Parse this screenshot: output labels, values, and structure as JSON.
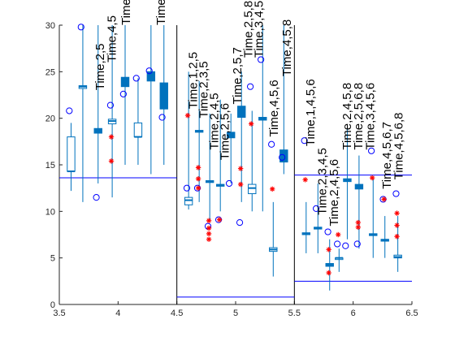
{
  "colors": {
    "box": "#0072BD",
    "outlier": "#FF0000",
    "circle": "#0000FF",
    "hline": "#0000FF",
    "axis": "#262626",
    "divider": "#000000"
  },
  "chart_data": {
    "type": "box",
    "title": "",
    "xlabel": "",
    "ylabel": "",
    "xlim": [
      3.5,
      6.5
    ],
    "ylim": [
      0,
      30
    ],
    "xticks": [
      "3.5",
      "4",
      "4.5",
      "5",
      "5.5",
      "6",
      "6.5"
    ],
    "yticks": [
      "0",
      "5",
      "10",
      "15",
      "20",
      "25",
      "30"
    ],
    "dividers_x": [
      4.5,
      5.5
    ],
    "hlines": [
      {
        "x0": 3.5,
        "x1": 4.5,
        "y": 13.6
      },
      {
        "x0": 4.5,
        "x1": 5.5,
        "y": 0.8
      },
      {
        "x0": 5.5,
        "x1": 6.5,
        "y": 2.5
      },
      {
        "x0": 5.5,
        "x1": 6.5,
        "y": 13.9
      }
    ],
    "boxes": [
      {
        "x": 3.6,
        "q1": 14.3,
        "q3": 18.0,
        "median": 14.3,
        "whisker_low": 12.2,
        "whisker_high": 19.5,
        "mean": 20.8,
        "filled": false,
        "width": 0.1
      },
      {
        "x": 3.7,
        "q1": 23.2,
        "q3": 23.5,
        "median": 23.4,
        "whisker_low": 11.0,
        "whisker_high": 30.0,
        "mean": 29.8,
        "filled": false,
        "width": 0.1
      },
      {
        "x": 3.83,
        "q1": 18.4,
        "q3": 18.9,
        "median": 18.6,
        "whisker_low": 13.0,
        "whisker_high": 30.0,
        "mean": 11.5,
        "filled": true,
        "width": 0.1
      },
      {
        "x": 3.95,
        "q1": 19.4,
        "q3": 19.9,
        "median": 19.7,
        "whisker_low": 11.5,
        "whisker_high": 30.0,
        "mean": 21.4,
        "filled": false,
        "width": 0.1,
        "outliers": [
          18.0,
          15.4
        ]
      },
      {
        "x": 4.06,
        "q1": 23.4,
        "q3": 24.4,
        "median": 23.8,
        "whisker_low": 15.0,
        "whisker_high": 30.0,
        "mean": 22.6,
        "filled": true,
        "width": 0.1
      },
      {
        "x": 4.17,
        "q1": 18.0,
        "q3": 19.5,
        "median": 18.0,
        "whisker_low": 15.0,
        "whisker_high": 24.3,
        "mean": 24.3,
        "filled": false,
        "width": 0.1
      },
      {
        "x": 4.28,
        "q1": 24.0,
        "q3": 25.0,
        "median": 24.4,
        "whisker_low": 14.0,
        "whisker_high": 30.0,
        "mean": 25.1,
        "filled": true,
        "width": 0.1
      },
      {
        "x": 4.39,
        "q1": 21.0,
        "q3": 23.8,
        "median": 22.0,
        "whisker_low": 15.0,
        "whisker_high": 30.0,
        "mean": 20.1,
        "filled": true,
        "width": 0.1
      },
      {
        "x": 4.6,
        "q1": 10.7,
        "q3": 11.5,
        "median": 11.2,
        "whisker_low": 10.2,
        "whisker_high": 25.0,
        "mean": 12.5,
        "filled": false,
        "width": 0.1,
        "outliers": [
          20.3
        ]
      },
      {
        "x": 4.69,
        "q1": 18.5,
        "q3": 18.7,
        "median": 18.6,
        "whisker_low": 11.0,
        "whisker_high": 24.0,
        "mean": 12.5,
        "filled": true,
        "width": 0.1,
        "outliers": [
          14.7,
          13.5,
          12.5
        ]
      },
      {
        "x": 4.78,
        "q1": 13.1,
        "q3": 13.3,
        "median": 13.2,
        "whisker_low": 9.0,
        "whisker_high": 20.5,
        "mean": 8.4,
        "filled": false,
        "width": 0.1,
        "outliers": [
          9.0,
          8.2,
          7.6,
          7.0
        ]
      },
      {
        "x": 4.87,
        "q1": 12.7,
        "q3": 12.9,
        "median": 12.8,
        "whisker_low": 10.0,
        "whisker_high": 22.0,
        "mean": 9.1,
        "filled": true,
        "width": 0.1,
        "outliers": [
          9.1
        ]
      },
      {
        "x": 4.96,
        "q1": 17.9,
        "q3": 18.5,
        "median": 18.2,
        "whisker_low": 13.0,
        "whisker_high": 20.5,
        "mean": 13.0,
        "filled": true,
        "width": 0.1
      },
      {
        "x": 5.05,
        "q1": 20.1,
        "q3": 21.3,
        "median": 20.6,
        "whisker_low": 11.0,
        "whisker_high": 25.0,
        "mean": 8.8,
        "filled": true,
        "width": 0.1,
        "outliers": [
          14.6,
          12.9
        ]
      },
      {
        "x": 5.14,
        "q1": 11.9,
        "q3": 12.9,
        "median": 12.5,
        "whisker_low": 10.0,
        "whisker_high": 20.8,
        "mean": 23.4,
        "filled": false,
        "width": 0.1,
        "outliers": [
          19.4
        ]
      },
      {
        "x": 5.23,
        "q1": 19.8,
        "q3": 20.1,
        "median": 19.9,
        "whisker_low": 10.0,
        "whisker_high": 30.0,
        "mean": 26.3,
        "filled": true,
        "width": 0.1
      },
      {
        "x": 5.32,
        "q1": 5.7,
        "q3": 6.1,
        "median": 5.9,
        "whisker_low": 3.0,
        "whisker_high": 11.0,
        "mean": 17.2,
        "filled": false,
        "width": 0.1,
        "outliers": [
          12.4
        ]
      },
      {
        "x": 5.41,
        "q1": 15.3,
        "q3": 16.6,
        "median": 15.9,
        "whisker_low": 14.0,
        "whisker_high": 30.0,
        "mean": 15.8,
        "filled": true,
        "width": 0.1
      },
      {
        "x": 5.6,
        "q1": 7.5,
        "q3": 7.7,
        "median": 7.6,
        "whisker_low": 5.5,
        "whisker_high": 11.0,
        "mean": 17.6,
        "filled": false,
        "width": 0.1,
        "outliers": [
          13.4
        ]
      },
      {
        "x": 5.7,
        "q1": 8.1,
        "q3": 8.3,
        "median": 8.2,
        "whisker_low": 5.5,
        "whisker_high": 13.0,
        "mean": 10.3,
        "filled": false,
        "width": 0.1
      },
      {
        "x": 5.8,
        "q1": 4.1,
        "q3": 4.4,
        "median": 4.3,
        "whisker_low": 1.5,
        "whisker_high": 7.0,
        "mean": 7.8,
        "filled": true,
        "width": 0.1,
        "outliers": [
          5.9,
          3.4
        ]
      },
      {
        "x": 5.88,
        "q1": 5.0,
        "q3": 5.0,
        "median": 5.0,
        "whisker_low": 3.5,
        "whisker_high": 6.0,
        "mean": 6.5,
        "filled": false,
        "width": 0.1,
        "outliers": [
          7.5
        ]
      },
      {
        "x": 5.95,
        "q1": 13.2,
        "q3": 13.5,
        "median": 13.3,
        "whisker_low": 7.0,
        "whisker_high": 19.0,
        "mean": 6.3,
        "filled": true,
        "width": 0.1
      },
      {
        "x": 6.05,
        "q1": 12.4,
        "q3": 12.9,
        "median": 12.7,
        "whisker_low": 6.0,
        "whisker_high": 16.0,
        "mean": 6.5,
        "filled": true,
        "width": 0.1,
        "outliers": [
          8.8,
          8.3
        ]
      },
      {
        "x": 6.17,
        "q1": 7.4,
        "q3": 7.6,
        "median": 7.5,
        "whisker_low": 5.0,
        "whisker_high": 13.5,
        "mean": 16.5,
        "filled": false,
        "width": 0.1,
        "outliers": [
          13.6
        ]
      },
      {
        "x": 6.27,
        "q1": 6.8,
        "q3": 7.0,
        "median": 6.9,
        "whisker_low": 5.0,
        "whisker_high": 9.5,
        "mean": 11.3,
        "filled": true,
        "width": 0.1,
        "outliers": [
          11.3
        ]
      },
      {
        "x": 6.38,
        "q1": 5.0,
        "q3": 5.3,
        "median": 5.1,
        "whisker_low": 3.5,
        "whisker_high": 9.5,
        "mean": 11.9,
        "filled": false,
        "width": 0.1,
        "outliers": [
          9.8,
          8.5,
          7.3
        ]
      }
    ],
    "annotations": [
      {
        "text": "Time,2,5",
        "x": 3.88,
        "y": 23.0
      },
      {
        "text": "Time,4,5",
        "x": 3.98,
        "y": 26.0
      },
      {
        "text": "Time",
        "x": 4.1,
        "y": 30.0
      },
      {
        "text": "Time",
        "x": 4.4,
        "y": 30.0
      },
      {
        "text": "Time,1,2,5",
        "x": 4.67,
        "y": 21.0
      },
      {
        "text": "Time,2,3,5",
        "x": 4.76,
        "y": 20.0
      },
      {
        "text": "Time,2,4,5",
        "x": 4.85,
        "y": 16.6
      },
      {
        "text": "Time,2,5,6",
        "x": 4.94,
        "y": 15.5
      },
      {
        "text": "Time,2,5,7",
        "x": 5.05,
        "y": 21.5
      },
      {
        "text": "Time,2,5,8",
        "x": 5.14,
        "y": 26.5
      },
      {
        "text": "Time,3,4,5",
        "x": 5.23,
        "y": 26.5
      },
      {
        "text": "Time,4,5,6",
        "x": 5.36,
        "y": 18.0
      },
      {
        "text": "Time,4,5,8",
        "x": 5.47,
        "y": 24.5
      },
      {
        "text": "Time,1,4,5,6",
        "x": 5.67,
        "y": 17.0
      },
      {
        "text": "Time,2,3,4,5",
        "x": 5.77,
        "y": 9.6
      },
      {
        "text": "Time,2,4,5,6",
        "x": 5.87,
        "y": 8.4
      },
      {
        "text": "Time,2,4,5,8",
        "x": 5.98,
        "y": 16.6
      },
      {
        "text": "Time,2,5,6,8",
        "x": 6.08,
        "y": 16.6
      },
      {
        "text": "Time,3,4,5,6",
        "x": 6.18,
        "y": 16.6
      },
      {
        "text": "Time,4,5,6,7",
        "x": 6.32,
        "y": 12.4
      },
      {
        "text": "Time,4,5,6,8",
        "x": 6.42,
        "y": 13.4
      }
    ]
  }
}
